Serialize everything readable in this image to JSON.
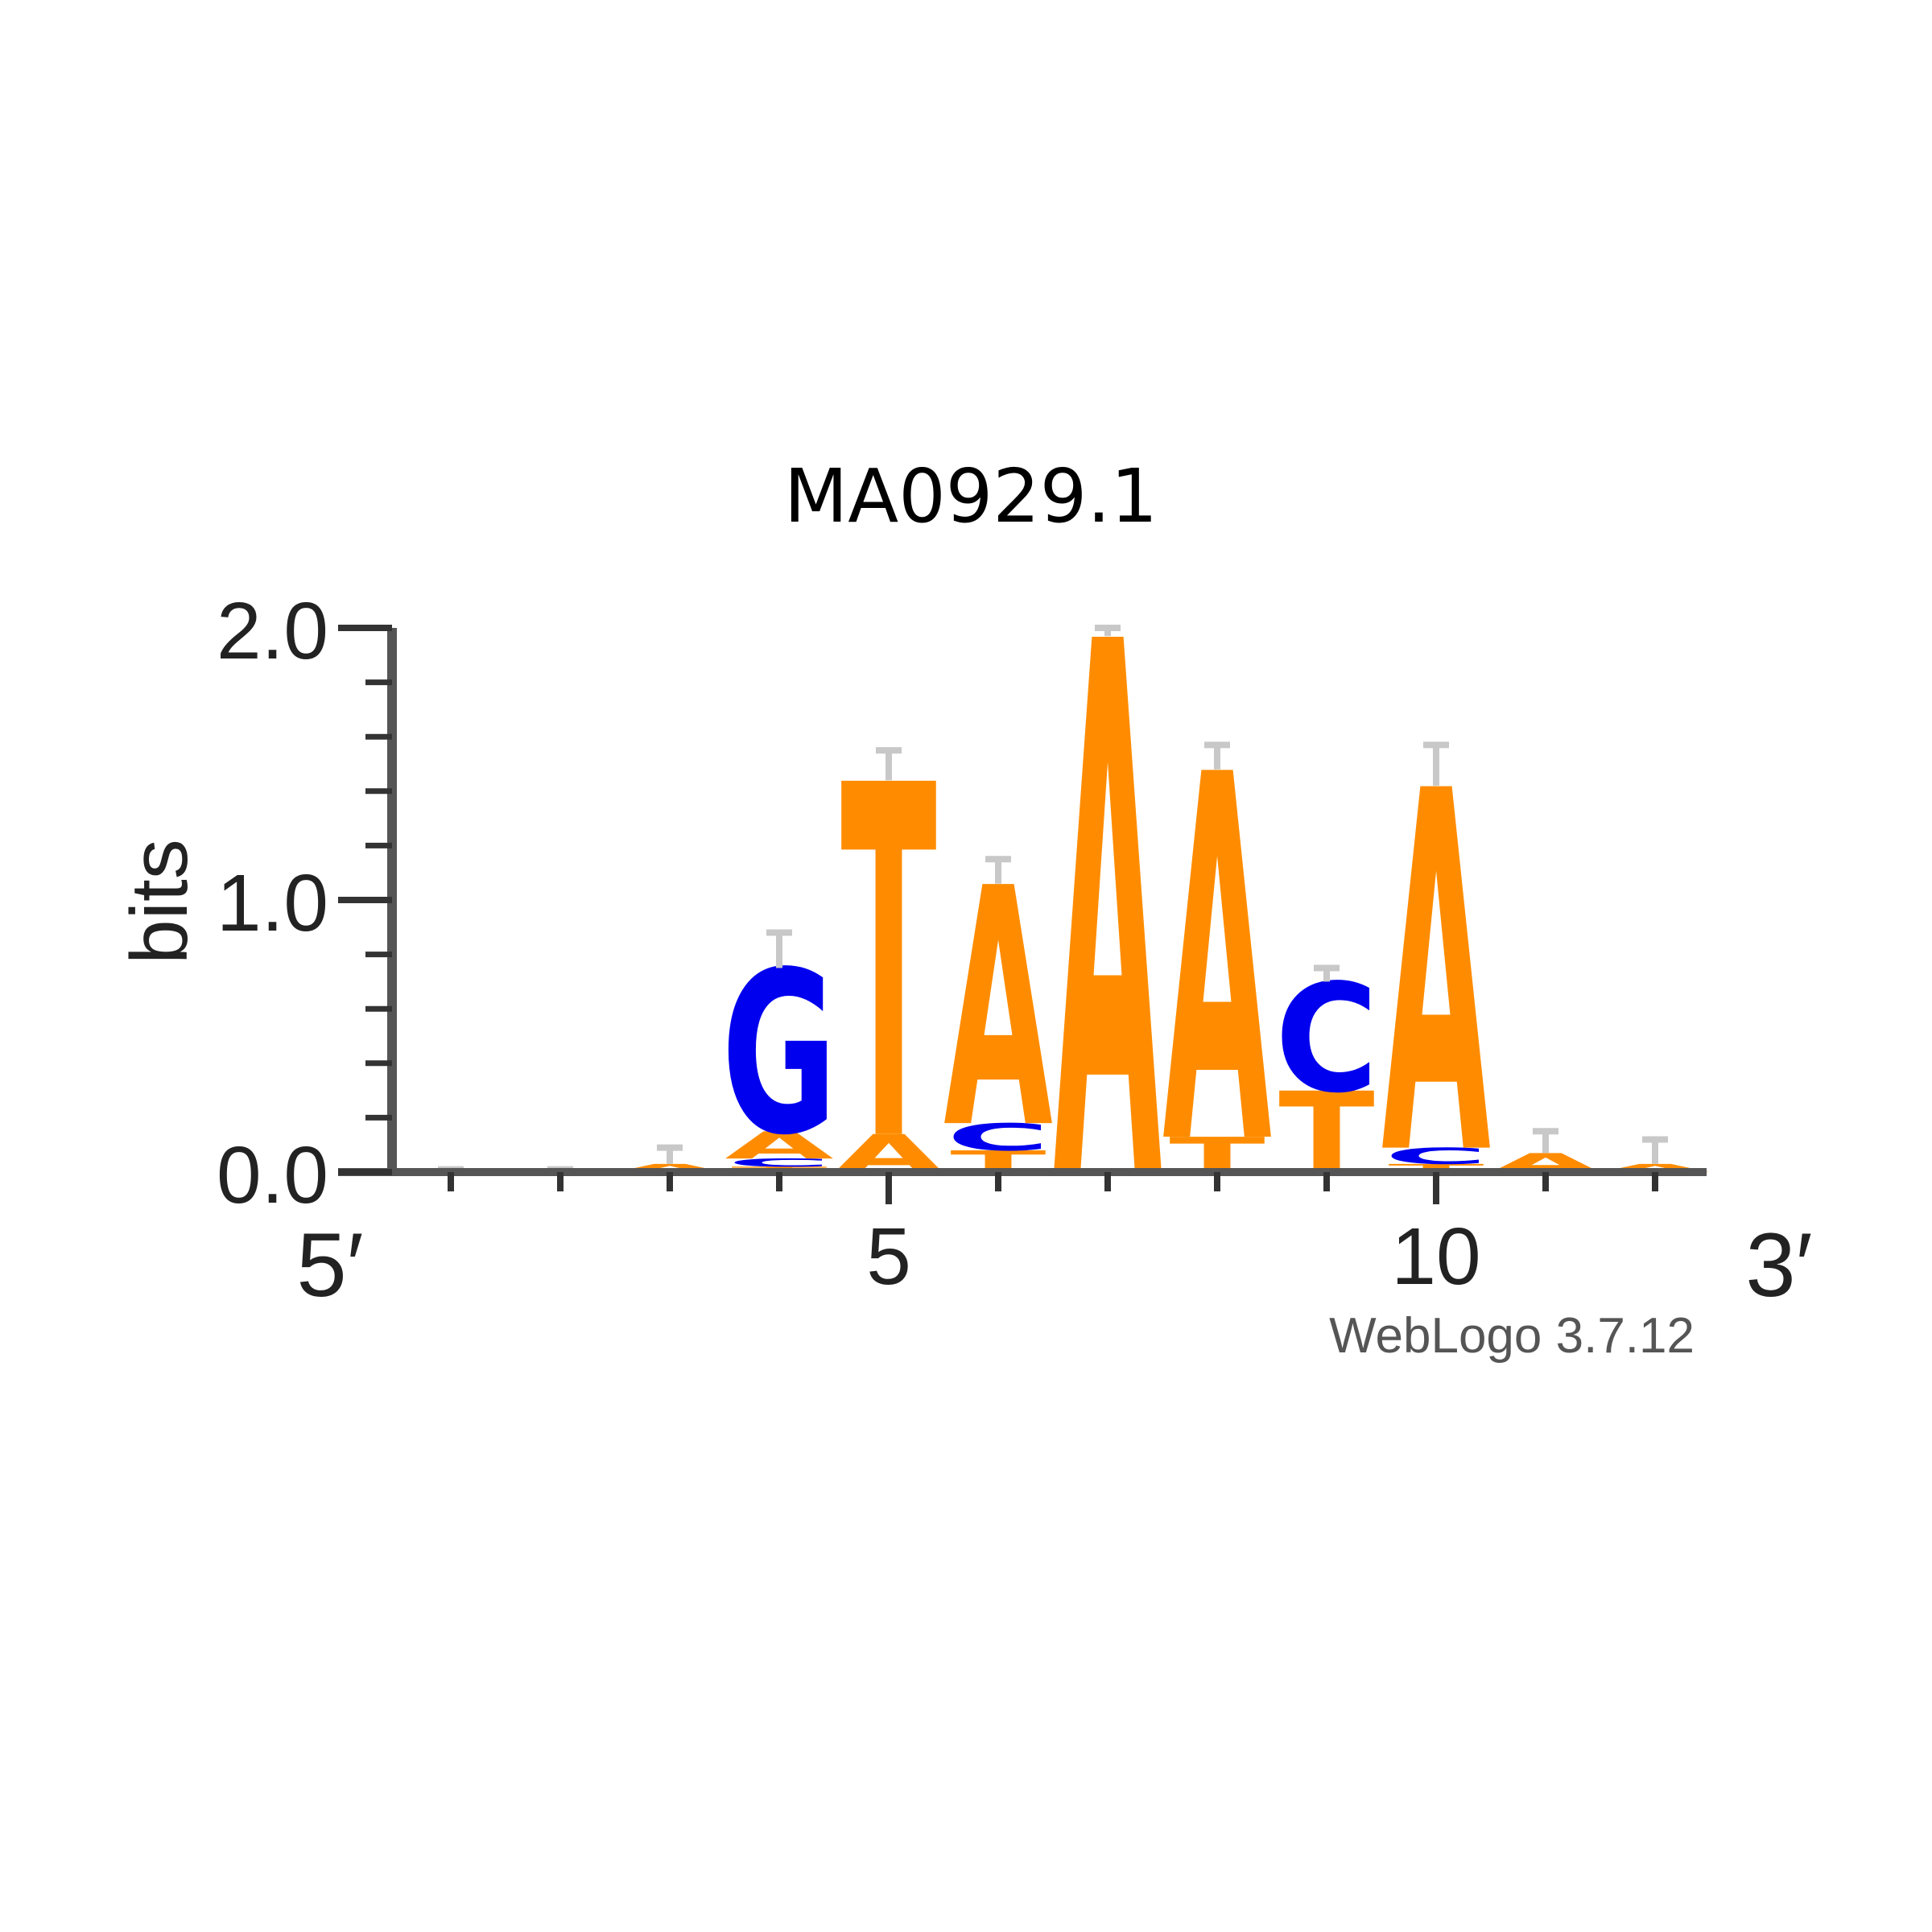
{
  "chart_data": {
    "type": "sequence-logo",
    "title": "MA0929.1",
    "ylabel": "bits",
    "ylim": [
      0,
      2
    ],
    "yticks": [
      "0.0",
      "1.0",
      "2.0"
    ],
    "x_start_label": "5′",
    "x_end_label": "3′",
    "xticks": [
      {
        "position": 5,
        "label": "5"
      },
      {
        "position": 10,
        "label": "10"
      }
    ],
    "positions": [
      1,
      2,
      3,
      4,
      5,
      6,
      7,
      8,
      9,
      10,
      11,
      12
    ],
    "colors": {
      "A": "#ff8c00",
      "T": "#ff8c00",
      "G": "#0000ee",
      "C": "#0000ee"
    },
    "stacks": [
      {
        "position": 1,
        "letters": []
      },
      {
        "position": 2,
        "letters": []
      },
      {
        "position": 3,
        "letters": [
          {
            "base": "A",
            "height": 0.03
          }
        ]
      },
      {
        "position": 4,
        "letters": [
          {
            "base": "T",
            "height": 0.02
          },
          {
            "base": "C",
            "height": 0.03
          },
          {
            "base": "A",
            "height": 0.1
          },
          {
            "base": "G",
            "height": 0.6
          }
        ]
      },
      {
        "position": 5,
        "letters": [
          {
            "base": "A",
            "height": 0.14
          },
          {
            "base": "T",
            "height": 1.3
          }
        ]
      },
      {
        "position": 6,
        "letters": [
          {
            "base": "T",
            "height": 0.08
          },
          {
            "base": "C",
            "height": 0.1
          },
          {
            "base": "A",
            "height": 0.88
          }
        ]
      },
      {
        "position": 7,
        "letters": [
          {
            "base": "A",
            "height": 1.97
          }
        ]
      },
      {
        "position": 8,
        "letters": [
          {
            "base": "T",
            "height": 0.13
          },
          {
            "base": "A",
            "height": 1.35
          }
        ]
      },
      {
        "position": 9,
        "letters": [
          {
            "base": "T",
            "height": 0.3
          },
          {
            "base": "C",
            "height": 0.4
          }
        ]
      },
      {
        "position": 10,
        "letters": [
          {
            "base": "T",
            "height": 0.03
          },
          {
            "base": "C",
            "height": 0.06
          },
          {
            "base": "A",
            "height": 1.33
          }
        ]
      },
      {
        "position": 11,
        "letters": [
          {
            "base": "A",
            "height": 0.07
          }
        ]
      },
      {
        "position": 12,
        "letters": [
          {
            "base": "A",
            "height": 0.03
          }
        ]
      }
    ],
    "error_bar_tops": [
      0.01,
      0.01,
      0.09,
      0.88,
      1.55,
      1.15,
      2.0,
      1.57,
      0.75,
      1.57,
      0.15,
      0.12
    ]
  },
  "watermark": "WebLogo 3.7.12"
}
